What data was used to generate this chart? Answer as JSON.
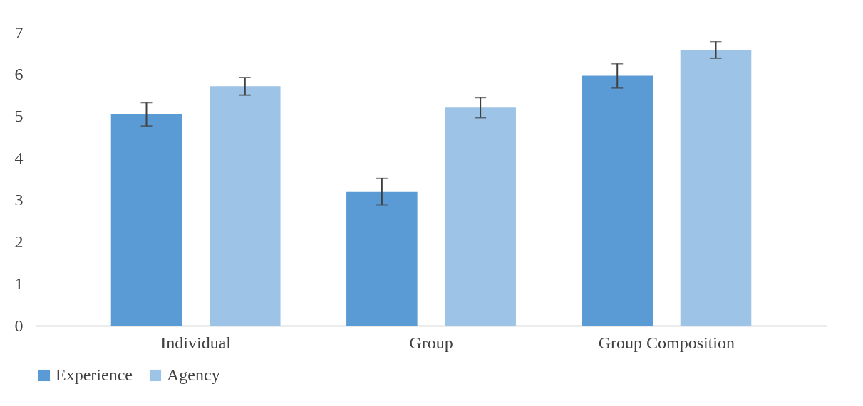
{
  "chart_data": {
    "type": "bar",
    "categories": [
      "Individual",
      "Group",
      "Group Composition"
    ],
    "series": [
      {
        "name": "Experience",
        "color": "#5b9bd5",
        "values": [
          5.05,
          3.2,
          5.97
        ],
        "errors": [
          0.28,
          0.32,
          0.29
        ]
      },
      {
        "name": "Agency",
        "color": "#9dc3e6",
        "values": [
          5.72,
          5.21,
          6.59
        ],
        "errors": [
          0.21,
          0.24,
          0.2
        ]
      }
    ],
    "ylim": [
      0,
      7
    ],
    "yticks": [
      0,
      1,
      2,
      3,
      4,
      5,
      6,
      7
    ],
    "grid": false,
    "legend": "bottom"
  }
}
